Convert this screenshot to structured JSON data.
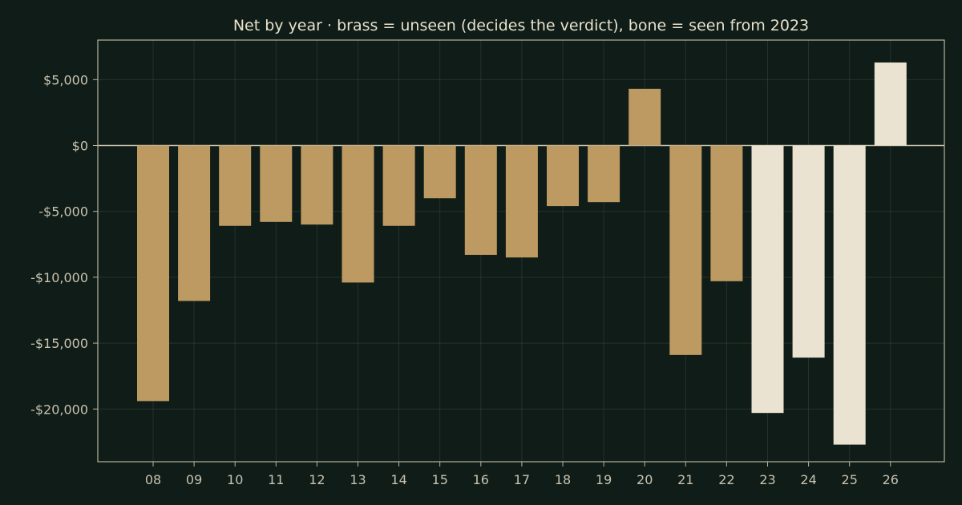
{
  "chart_data": {
    "type": "bar",
    "title": "Net by year  ·  brass = unseen (decides the verdict), bone = seen from 2023",
    "xlabel": "",
    "ylabel": "",
    "categories": [
      "08",
      "09",
      "10",
      "11",
      "12",
      "13",
      "14",
      "15",
      "16",
      "17",
      "18",
      "19",
      "20",
      "21",
      "22",
      "23",
      "24",
      "25",
      "26"
    ],
    "values": [
      -19400,
      -11800,
      -6100,
      -5800,
      -6000,
      -10400,
      -6100,
      -4000,
      -8300,
      -8500,
      -4600,
      -4300,
      4300,
      -15900,
      -10300,
      -20300,
      -16100,
      -22700,
      6300
    ],
    "groups": [
      "unseen",
      "unseen",
      "unseen",
      "unseen",
      "unseen",
      "unseen",
      "unseen",
      "unseen",
      "unseen",
      "unseen",
      "unseen",
      "unseen",
      "unseen",
      "unseen",
      "unseen",
      "seen",
      "seen",
      "seen",
      "seen"
    ],
    "group_colors": {
      "unseen": "#bd9a62",
      "seen": "#ebe3d1"
    },
    "ylim": [
      -24000,
      8000
    ],
    "yticks": [
      5000,
      0,
      -5000,
      -10000,
      -15000,
      -20000
    ],
    "ytick_labels": [
      "$5,000",
      "$0",
      "-$5,000",
      "-$10,000",
      "-$15,000",
      "-$20,000"
    ],
    "grid": true,
    "legend": "none"
  }
}
